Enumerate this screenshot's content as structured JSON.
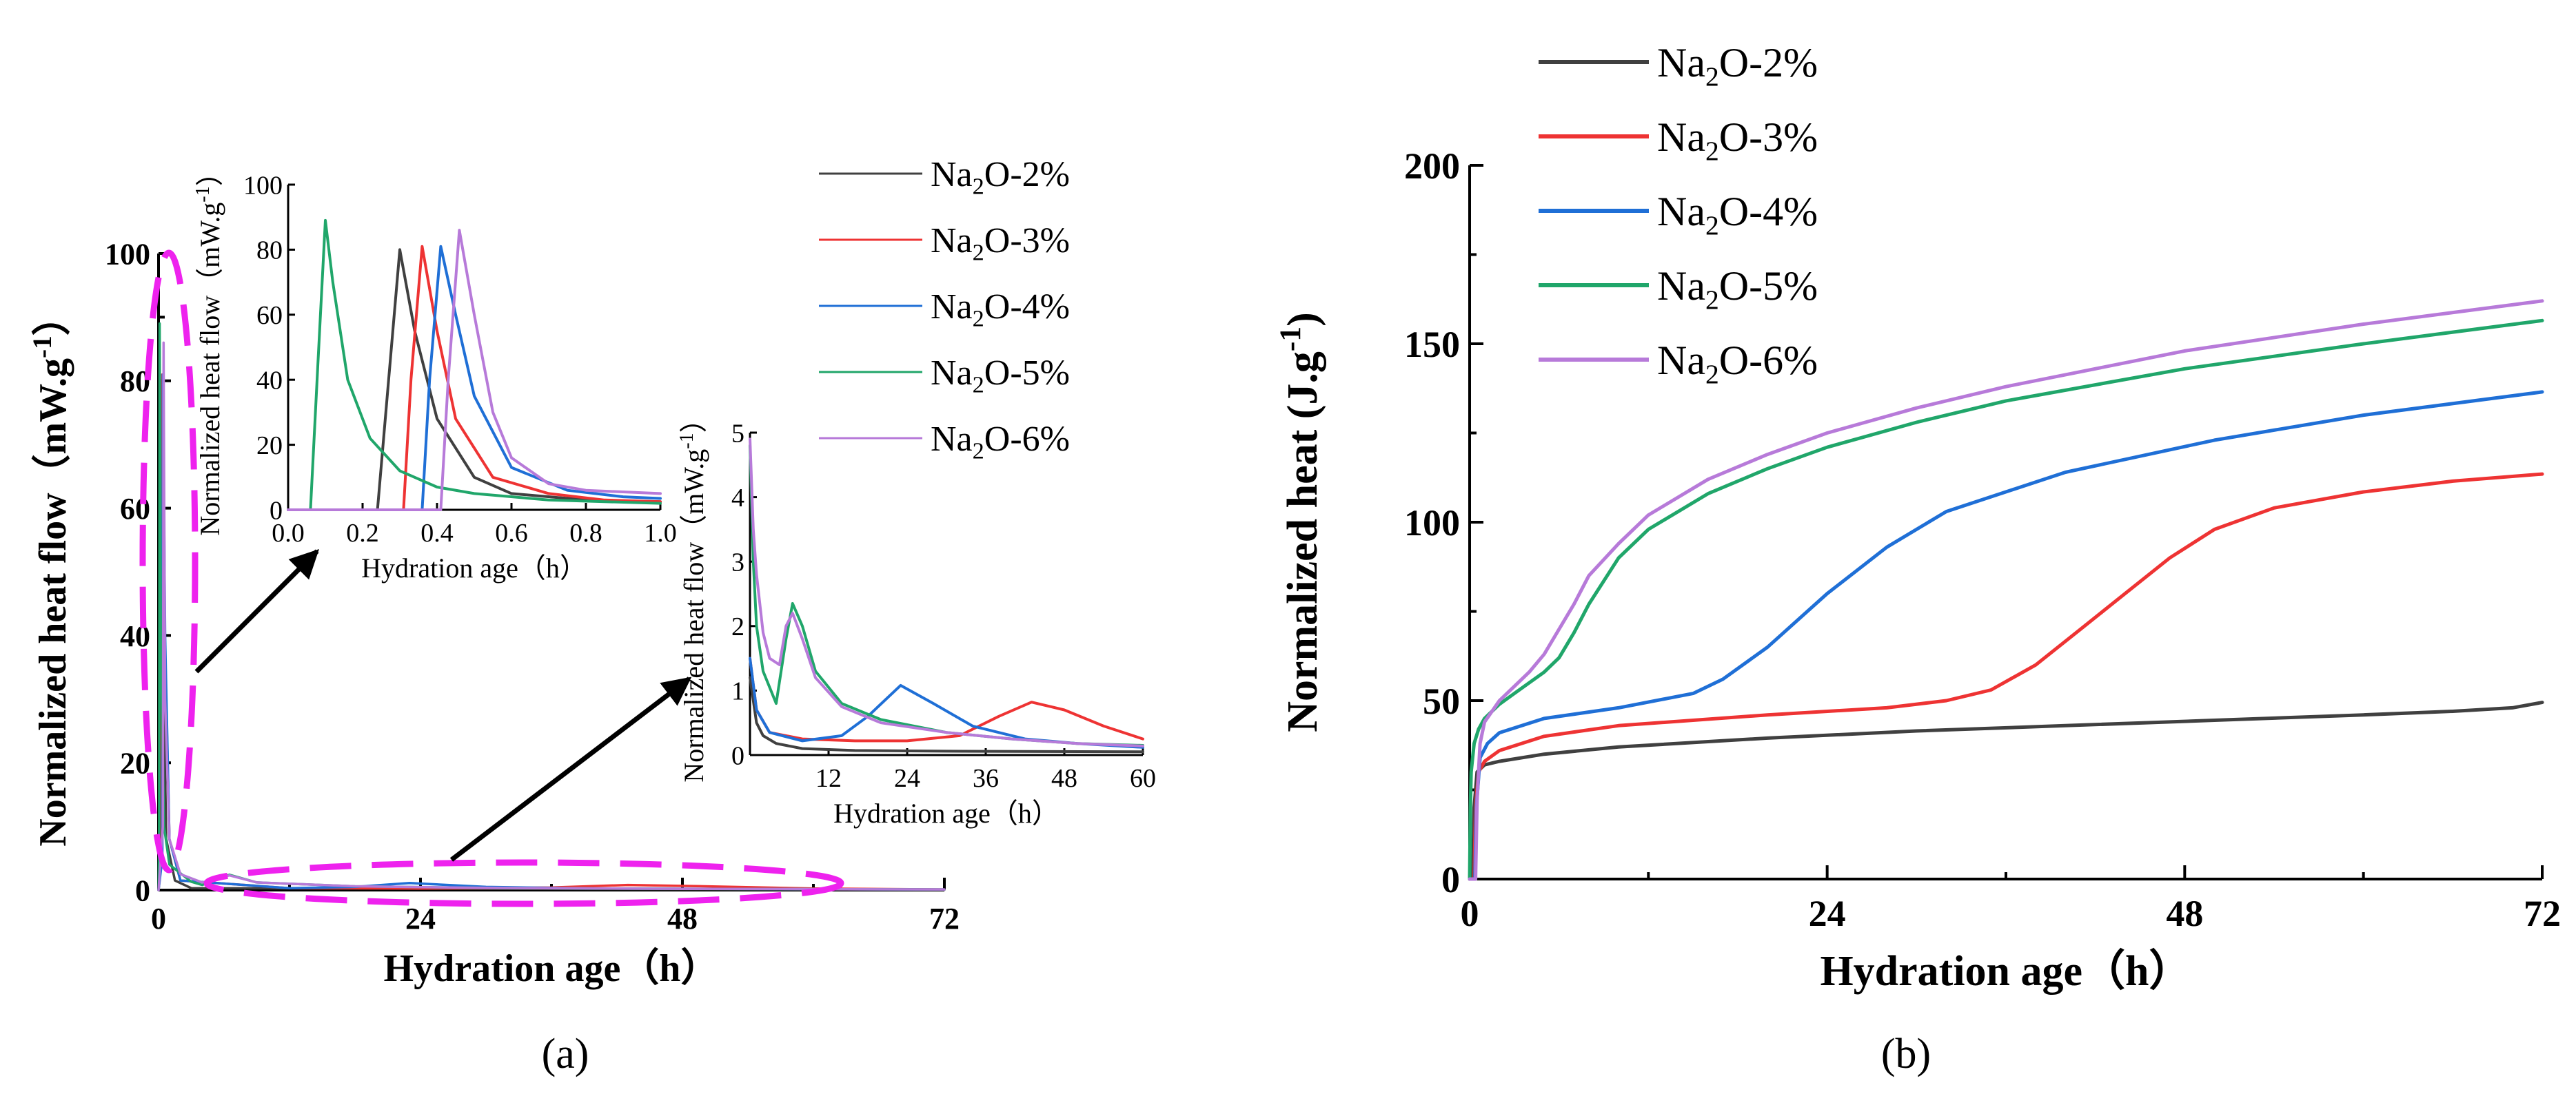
{
  "colors": {
    "Na2O-2%": "#404040",
    "Na2O-3%": "#ee3333",
    "Na2O-4%": "#1f6fd6",
    "Na2O-5%": "#20a66a",
    "Na2O-6%": "#b77ad9",
    "highlight": "#ee22ee",
    "arrow": "#000000"
  },
  "chart_data": [
    {
      "id": "a_main",
      "type": "line",
      "panel_label": "(a)",
      "title": "",
      "xlabel": "Hydration age（h）",
      "ylabel_main": "Normalized heat flow（mW.g",
      "ylabel_sup": "-1",
      "ylabel_end": "）",
      "xlim": [
        0,
        72
      ],
      "ylim": [
        0,
        100
      ],
      "xticks": [
        0,
        24,
        48,
        72
      ],
      "yticks": [
        0,
        20,
        40,
        60,
        80,
        100
      ],
      "legend": [
        "Na2O-2%",
        "Na2O-3%",
        "Na2O-4%",
        "Na2O-5%",
        "Na2O-6%"
      ],
      "series": [
        {
          "name": "Na2O-2%",
          "x": [
            0,
            0.2,
            0.28,
            0.4,
            0.7,
            1.5,
            3,
            72
          ],
          "y": [
            0,
            5,
            80,
            40,
            8,
            1.5,
            0.3,
            0.05
          ]
        },
        {
          "name": "Na2O-3%",
          "x": [
            0,
            0.3,
            0.35,
            0.5,
            1,
            2,
            12,
            24,
            36,
            43,
            50,
            60,
            72
          ],
          "y": [
            0,
            5,
            81,
            45,
            8,
            1.5,
            0.3,
            0.25,
            0.4,
            0.8,
            0.6,
            0.25,
            0.1
          ]
        },
        {
          "name": "Na2O-4%",
          "x": [
            0,
            0.35,
            0.4,
            0.6,
            1,
            2,
            12,
            18,
            23,
            30,
            40,
            60,
            72
          ],
          "y": [
            0,
            5,
            81,
            40,
            8,
            1.5,
            0.3,
            0.5,
            1.1,
            0.5,
            0.25,
            0.15,
            0.1
          ]
        },
        {
          "name": "Na2O-5%",
          "x": [
            0,
            0.06,
            0.1,
            0.2,
            0.5,
            1,
            3,
            4,
            6.5,
            9,
            18,
            30,
            48,
            60,
            72
          ],
          "y": [
            0,
            10,
            89,
            40,
            10,
            4,
            1.3,
            0.8,
            2.4,
            1.2,
            0.6,
            0.35,
            0.2,
            0.15,
            0.1
          ]
        },
        {
          "name": "Na2O-6%",
          "x": [
            0,
            0.4,
            0.46,
            0.6,
            1,
            2,
            4,
            6.5,
            9,
            18,
            30,
            48,
            60,
            72
          ],
          "y": [
            0,
            10,
            86,
            30,
            8,
            2.5,
            1.2,
            2.3,
            1.2,
            0.6,
            0.35,
            0.2,
            0.15,
            0.1
          ]
        }
      ]
    },
    {
      "id": "a_inset1",
      "type": "line",
      "xlabel": "Hydration age（h）",
      "ylabel": "Normalized heat flow（mW.g-1）",
      "ylabel_main": "Normalized heat flow（mW.g",
      "ylabel_sup": "-1",
      "ylabel_end": "）",
      "xlim": [
        0,
        1.0
      ],
      "ylim": [
        0,
        100
      ],
      "xticks": [
        0.0,
        0.2,
        0.4,
        0.6,
        0.8,
        1.0
      ],
      "xtick_labels": [
        "0.0",
        "0.2",
        "0.4",
        "0.6",
        "0.8",
        "1.0"
      ],
      "yticks": [
        0,
        20,
        40,
        60,
        80,
        100
      ],
      "series": [
        {
          "name": "Na2O-2%",
          "x": [
            0,
            0.24,
            0.27,
            0.3,
            0.34,
            0.4,
            0.5,
            0.6,
            0.8,
            1.0
          ],
          "y": [
            0,
            0,
            40,
            80,
            55,
            28,
            10,
            5,
            3,
            2.5
          ]
        },
        {
          "name": "Na2O-3%",
          "x": [
            0,
            0.31,
            0.33,
            0.36,
            0.4,
            0.45,
            0.55,
            0.7,
            0.85,
            1.0
          ],
          "y": [
            0,
            0,
            40,
            81,
            55,
            28,
            10,
            5,
            3,
            2.5
          ]
        },
        {
          "name": "Na2O-4%",
          "x": [
            0,
            0.36,
            0.38,
            0.41,
            0.45,
            0.5,
            0.6,
            0.75,
            0.9,
            1.0
          ],
          "y": [
            0,
            0,
            40,
            81,
            60,
            35,
            13,
            6,
            4,
            3.5
          ]
        },
        {
          "name": "Na2O-5%",
          "x": [
            0,
            0.06,
            0.08,
            0.1,
            0.12,
            0.16,
            0.22,
            0.3,
            0.4,
            0.5,
            0.7,
            1.0
          ],
          "y": [
            0,
            0,
            45,
            89,
            70,
            40,
            22,
            12,
            7,
            5,
            3,
            2
          ]
        },
        {
          "name": "Na2O-6%",
          "x": [
            0,
            0.41,
            0.43,
            0.46,
            0.5,
            0.55,
            0.6,
            0.7,
            0.8,
            1.0
          ],
          "y": [
            0,
            0,
            40,
            86,
            60,
            30,
            16,
            8,
            6,
            5
          ]
        }
      ]
    },
    {
      "id": "a_inset2",
      "type": "line",
      "xlabel": "Hydration age（h）",
      "ylabel": "Normalized heat flow（mW.g-1）",
      "ylabel_main": "Normalized heat flow（mW.g",
      "ylabel_sup": "-1",
      "ylabel_end": "）",
      "xlim": [
        0,
        60
      ],
      "ylim": [
        0,
        5
      ],
      "xticks": [
        12,
        24,
        36,
        48,
        60
      ],
      "yticks": [
        0,
        1,
        2,
        3,
        4,
        5
      ],
      "series": [
        {
          "name": "Na2O-2%",
          "x": [
            0,
            1,
            2,
            4,
            8,
            16,
            30,
            60
          ],
          "y": [
            1.2,
            0.5,
            0.3,
            0.18,
            0.1,
            0.07,
            0.06,
            0.05
          ]
        },
        {
          "name": "Na2O-3%",
          "x": [
            0,
            1,
            3,
            8,
            16,
            24,
            32,
            38,
            43,
            48,
            54,
            60
          ],
          "y": [
            1.5,
            0.7,
            0.35,
            0.25,
            0.22,
            0.22,
            0.3,
            0.6,
            0.82,
            0.7,
            0.45,
            0.25
          ]
        },
        {
          "name": "Na2O-4%",
          "x": [
            0,
            1,
            3,
            8,
            14,
            18,
            23,
            28,
            34,
            42,
            50,
            60
          ],
          "y": [
            1.5,
            0.7,
            0.35,
            0.22,
            0.3,
            0.6,
            1.08,
            0.8,
            0.45,
            0.25,
            0.18,
            0.12
          ]
        },
        {
          "name": "Na2O-5%",
          "x": [
            0,
            0.5,
            1,
            2,
            4,
            5.5,
            6.5,
            8,
            10,
            14,
            20,
            30,
            40,
            50,
            60
          ],
          "y": [
            4.8,
            3,
            2,
            1.3,
            0.8,
            1.8,
            2.35,
            2.0,
            1.3,
            0.8,
            0.55,
            0.35,
            0.25,
            0.18,
            0.15
          ]
        },
        {
          "name": "Na2O-6%",
          "x": [
            0,
            0.5,
            1,
            2,
            3,
            4.5,
            5.5,
            6.5,
            8,
            10,
            14,
            20,
            30,
            40,
            50,
            60
          ],
          "y": [
            4.9,
            3.5,
            2.8,
            1.9,
            1.5,
            1.4,
            2.0,
            2.2,
            1.8,
            1.2,
            0.75,
            0.5,
            0.35,
            0.25,
            0.18,
            0.14
          ]
        }
      ]
    },
    {
      "id": "b_main",
      "type": "line",
      "panel_label": "(b)",
      "xlabel": "Hydration age（h）",
      "ylabel_main": "Normalized heat (J.g",
      "ylabel_sup": "-1",
      "ylabel_end": ")",
      "xlim": [
        0,
        72
      ],
      "ylim": [
        0,
        200
      ],
      "xticks": [
        0,
        24,
        48,
        72
      ],
      "yticks": [
        0,
        50,
        100,
        150,
        200
      ],
      "legend": [
        "Na2O-2%",
        "Na2O-3%",
        "Na2O-4%",
        "Na2O-5%",
        "Na2O-6%"
      ],
      "series": [
        {
          "name": "Na2O-2%",
          "x": [
            0,
            0.2,
            0.3,
            0.5,
            1,
            2,
            5,
            10,
            20,
            30,
            40,
            50,
            60,
            66,
            70,
            72
          ],
          "y": [
            0,
            0,
            20,
            30,
            32,
            33,
            35,
            37,
            39.5,
            41.5,
            43,
            44.5,
            46,
            47,
            48,
            49.5
          ]
        },
        {
          "name": "Na2O-3%",
          "x": [
            0,
            0.3,
            0.4,
            0.6,
            1,
            2,
            5,
            10,
            20,
            28,
            32,
            35,
            38,
            41,
            44,
            47,
            50,
            54,
            60,
            66,
            72
          ],
          "y": [
            0,
            0,
            20,
            30,
            33,
            36,
            40,
            43,
            46,
            48,
            50,
            53,
            60,
            70,
            80,
            90,
            98,
            104,
            108.5,
            111.5,
            113.5
          ]
        },
        {
          "name": "Na2O-4%",
          "x": [
            0,
            0.35,
            0.45,
            0.7,
            1.2,
            2,
            5,
            10,
            15,
            17,
            20,
            24,
            28,
            32,
            40,
            50,
            60,
            72
          ],
          "y": [
            0,
            0,
            20,
            34,
            38,
            41,
            45,
            48,
            52,
            56,
            65,
            80,
            93,
            103,
            114,
            123,
            130,
            136.5
          ]
        },
        {
          "name": "Na2O-5%",
          "x": [
            0,
            0.05,
            0.1,
            0.3,
            0.6,
            1,
            2,
            3,
            4,
            5,
            6,
            7,
            8,
            10,
            12,
            16,
            20,
            24,
            30,
            36,
            48,
            60,
            72
          ],
          "y": [
            0,
            20,
            30,
            38,
            42,
            45,
            49,
            52,
            55,
            58,
            62,
            69,
            77,
            90,
            98,
            108,
            115,
            121,
            128,
            134,
            143,
            150,
            156.5
          ]
        },
        {
          "name": "Na2O-6%",
          "x": [
            0,
            0.4,
            0.5,
            0.7,
            1,
            2,
            3,
            4,
            5,
            6,
            7,
            8,
            10,
            12,
            16,
            20,
            24,
            30,
            36,
            48,
            60,
            72
          ],
          "y": [
            0,
            0,
            22,
            38,
            44,
            50,
            54,
            58,
            63,
            70,
            77,
            85,
            94,
            102,
            112,
            119,
            125,
            132,
            138,
            148,
            155.5,
            162
          ]
        }
      ]
    }
  ],
  "legend_display": [
    {
      "key": "Na2O-2%",
      "pre": "Na",
      "sub": "2",
      "post": "O-2%"
    },
    {
      "key": "Na2O-3%",
      "pre": "Na",
      "sub": "2",
      "post": "O-3%"
    },
    {
      "key": "Na2O-4%",
      "pre": "Na",
      "sub": "2",
      "post": "O-4%"
    },
    {
      "key": "Na2O-5%",
      "pre": "Na",
      "sub": "2",
      "post": "O-5%"
    },
    {
      "key": "Na2O-6%",
      "pre": "Na",
      "sub": "2",
      "post": "O-6%"
    }
  ]
}
